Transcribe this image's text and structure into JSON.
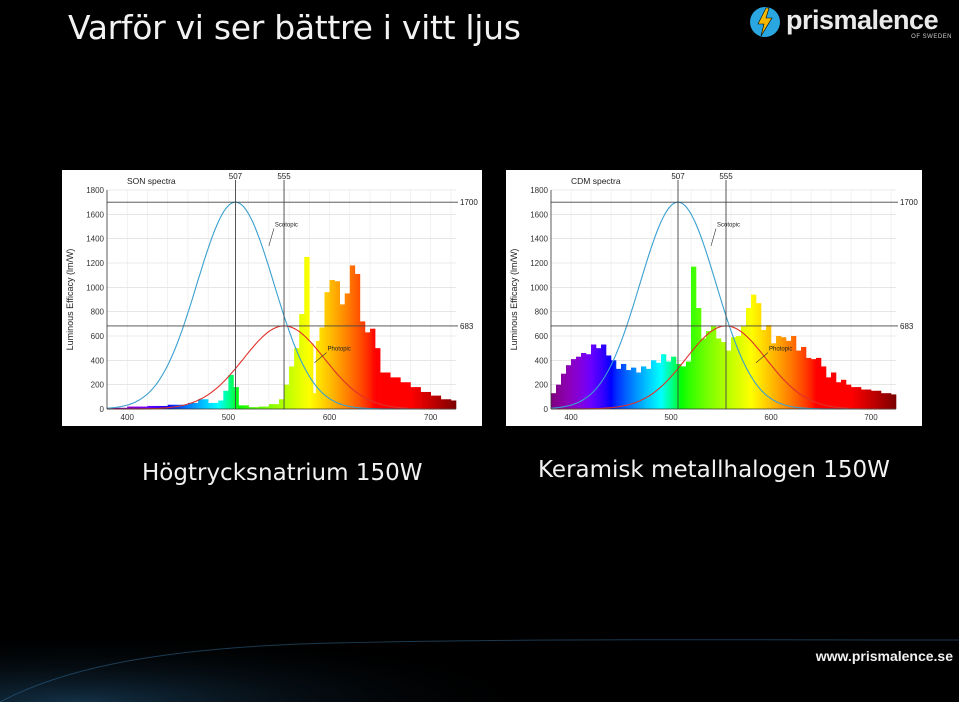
{
  "slide": {
    "title": "Varför vi ser bättre i vitt ljus",
    "logo_text": "prismalence",
    "logo_sub": "OF SWEDEN",
    "footer_url": "www.prismalence.se",
    "logo_color": "#2aa6e0"
  },
  "chart_data": [
    {
      "type": "area",
      "title": "SON spectra",
      "caption": "Högtrycksnatrium 150W",
      "ylabel": "Luminous Efficacy (lm/W)",
      "xlabel": "",
      "xlim": [
        380,
        725
      ],
      "ylim": [
        0,
        1800
      ],
      "x_ticks": [
        400,
        500,
        600,
        700
      ],
      "y_ticks": [
        0,
        200,
        400,
        600,
        800,
        1000,
        1200,
        1400,
        1600,
        1800
      ],
      "grid": true,
      "top_markers": [
        507,
        555
      ],
      "right_markers": [
        1700,
        683
      ],
      "curve_labels": {
        "scotopic": "Scotopic",
        "photopic": "Photopic"
      },
      "scotopic": {
        "peak_nm": 507,
        "peak_value": 1700,
        "sigma_nm": 38
      },
      "photopic": {
        "peak_nm": 555,
        "peak_value": 683,
        "sigma_nm": 40
      },
      "spectrum": [
        [
          380,
          10
        ],
        [
          400,
          20
        ],
        [
          420,
          25
        ],
        [
          440,
          35
        ],
        [
          460,
          50
        ],
        [
          470,
          80
        ],
        [
          480,
          50
        ],
        [
          490,
          70
        ],
        [
          495,
          150
        ],
        [
          500,
          280
        ],
        [
          505,
          180
        ],
        [
          510,
          30
        ],
        [
          520,
          15
        ],
        [
          530,
          20
        ],
        [
          540,
          40
        ],
        [
          550,
          80
        ],
        [
          555,
          200
        ],
        [
          560,
          350
        ],
        [
          565,
          500
        ],
        [
          570,
          780
        ],
        [
          575,
          1250
        ],
        [
          580,
          540
        ],
        [
          585,
          560
        ],
        [
          590,
          670
        ],
        [
          595,
          960
        ],
        [
          600,
          1060
        ],
        [
          605,
          1050
        ],
        [
          610,
          860
        ],
        [
          615,
          950
        ],
        [
          620,
          1180
        ],
        [
          625,
          1110
        ],
        [
          630,
          720
        ],
        [
          635,
          630
        ],
        [
          640,
          660
        ],
        [
          645,
          500
        ],
        [
          650,
          300
        ],
        [
          660,
          260
        ],
        [
          670,
          220
        ],
        [
          680,
          180
        ],
        [
          690,
          140
        ],
        [
          700,
          110
        ],
        [
          710,
          80
        ],
        [
          720,
          70
        ]
      ],
      "spectrum_notches": [
        [
          585,
          130
        ]
      ]
    },
    {
      "type": "area",
      "title": "CDM spectra",
      "caption": "Keramisk metallhalogen 150W",
      "ylabel": "Luminous Efficacy (lm/W)",
      "xlabel": "",
      "xlim": [
        380,
        725
      ],
      "ylim": [
        0,
        1800
      ],
      "x_ticks": [
        400,
        500,
        600,
        700
      ],
      "y_ticks": [
        0,
        200,
        400,
        600,
        800,
        1000,
        1200,
        1400,
        1600,
        1800
      ],
      "grid": true,
      "top_markers": [
        507,
        555
      ],
      "right_markers": [
        1700,
        683
      ],
      "curve_labels": {
        "scotopic": "Scotopic",
        "photopic": "Photopic"
      },
      "scotopic": {
        "peak_nm": 507,
        "peak_value": 1700,
        "sigma_nm": 38
      },
      "photopic": {
        "peak_nm": 555,
        "peak_value": 683,
        "sigma_nm": 40
      },
      "spectrum": [
        [
          380,
          130
        ],
        [
          385,
          200
        ],
        [
          390,
          290
        ],
        [
          395,
          360
        ],
        [
          400,
          410
        ],
        [
          405,
          430
        ],
        [
          410,
          460
        ],
        [
          415,
          450
        ],
        [
          420,
          530
        ],
        [
          425,
          500
        ],
        [
          430,
          530
        ],
        [
          435,
          440
        ],
        [
          440,
          400
        ],
        [
          445,
          330
        ],
        [
          450,
          370
        ],
        [
          455,
          320
        ],
        [
          460,
          340
        ],
        [
          465,
          300
        ],
        [
          470,
          350
        ],
        [
          475,
          330
        ],
        [
          480,
          400
        ],
        [
          485,
          380
        ],
        [
          490,
          450
        ],
        [
          495,
          390
        ],
        [
          500,
          430
        ],
        [
          505,
          370
        ],
        [
          510,
          350
        ],
        [
          515,
          390
        ],
        [
          520,
          1170
        ],
        [
          525,
          830
        ],
        [
          530,
          580
        ],
        [
          535,
          640
        ],
        [
          540,
          680
        ],
        [
          545,
          580
        ],
        [
          550,
          550
        ],
        [
          555,
          480
        ],
        [
          560,
          590
        ],
        [
          565,
          600
        ],
        [
          570,
          680
        ],
        [
          575,
          830
        ],
        [
          580,
          940
        ],
        [
          585,
          870
        ],
        [
          590,
          650
        ],
        [
          595,
          690
        ],
        [
          600,
          540
        ],
        [
          605,
          600
        ],
        [
          610,
          590
        ],
        [
          615,
          560
        ],
        [
          620,
          600
        ],
        [
          625,
          480
        ],
        [
          630,
          510
        ],
        [
          635,
          420
        ],
        [
          640,
          410
        ],
        [
          645,
          420
        ],
        [
          650,
          350
        ],
        [
          655,
          260
        ],
        [
          660,
          300
        ],
        [
          665,
          220
        ],
        [
          670,
          240
        ],
        [
          675,
          200
        ],
        [
          680,
          180
        ],
        [
          690,
          160
        ],
        [
          700,
          150
        ],
        [
          710,
          130
        ],
        [
          720,
          120
        ]
      ],
      "spectrum_notches": []
    }
  ]
}
